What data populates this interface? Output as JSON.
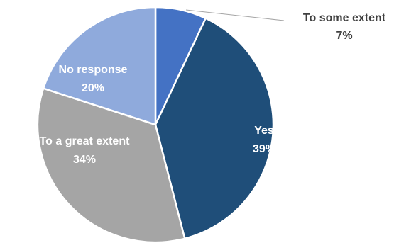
{
  "chart_data": {
    "type": "pie",
    "title": "",
    "start_angle_deg": 0,
    "direction": "clockwise",
    "slices": [
      {
        "name": "To some extent",
        "value": 7,
        "label": "7%",
        "color": "#4472c4",
        "label_color": "#404040",
        "label_position": "outside"
      },
      {
        "name": "Yes",
        "value": 39,
        "label": "39%",
        "color": "#1f4e79",
        "label_color": "#ffffff",
        "label_position": "inside"
      },
      {
        "name": "To a great extent",
        "value": 34,
        "label": "34%",
        "color": "#a5a5a5",
        "label_color": "#ffffff",
        "label_position": "inside"
      },
      {
        "name": "No response",
        "value": 20,
        "label": "20%",
        "color": "#8faadc",
        "label_color": "#ffffff",
        "label_position": "inside"
      }
    ]
  }
}
